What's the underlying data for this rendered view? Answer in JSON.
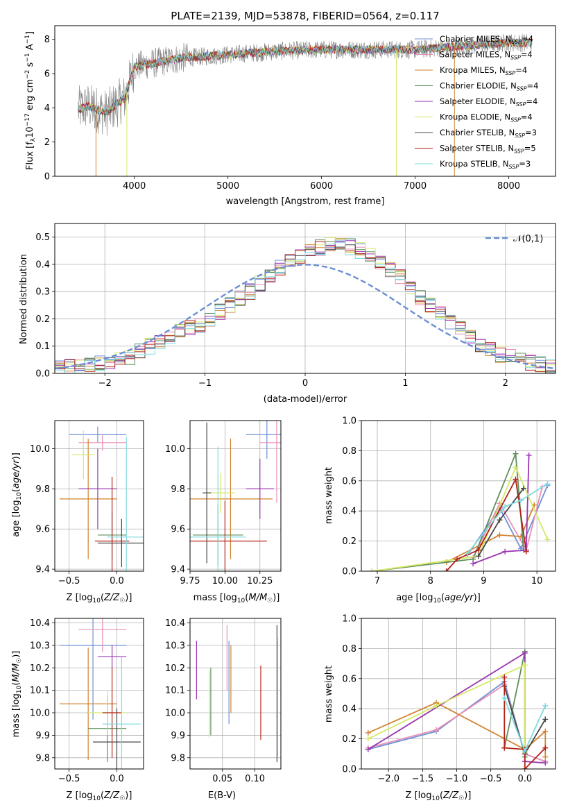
{
  "chart_data": [
    {
      "type": "line",
      "title": "PLATE=2139, MJD=53878, FIBERID=0564, z=0.117",
      "xlabel": "wavelength [Angstrom, rest frame]",
      "ylabel": "Flux [f_λ 10^-17 erg cm^-2 s^-1 A^-1]",
      "xlim": [
        3150,
        8500
      ],
      "ylim": [
        0,
        8.8
      ],
      "xticks": [
        "4000",
        "5000",
        "6000",
        "7000",
        "8000"
      ],
      "yticks": [
        "0",
        "2",
        "4",
        "6",
        "8"
      ],
      "legend_placement": "right",
      "series": [
        {
          "name": "Chabrier MILES, N_SSP=4",
          "color": "#6f8fd6"
        },
        {
          "name": "Salpeter MILES, N_SSP=4",
          "color": "#e98fb7"
        },
        {
          "name": "Kroupa MILES, N_SSP=4",
          "color": "#d2832e"
        },
        {
          "name": "Chabrier ELODIE, N_SSP=4",
          "color": "#5d8f5b"
        },
        {
          "name": "Salpeter ELODIE, N_SSP=4",
          "color": "#9a36b0"
        },
        {
          "name": "Kroupa ELODIE, N_SSP=4",
          "color": "#d6e866"
        },
        {
          "name": "Chabrier STELIB, N_SSP=3",
          "color": "#444444"
        },
        {
          "name": "Salpeter STELIB, N_SSP=5",
          "color": "#b32015"
        },
        {
          "name": "Kroupa STELIB, N_SSP=3",
          "color": "#7fd9df"
        }
      ],
      "continuum": {
        "x": [
          3400,
          3500,
          3700,
          3900,
          4000,
          4500,
          5000,
          5500,
          6000,
          6500,
          7000,
          7500,
          8000,
          8250
        ],
        "y": [
          3.9,
          4.1,
          3.7,
          4.6,
          6.4,
          6.9,
          7.1,
          7.3,
          7.4,
          7.4,
          7.4,
          7.6,
          7.8,
          7.8
        ]
      }
    },
    {
      "type": "histogram",
      "xlabel": "(data-model)/error",
      "ylabel": "Normed distribution",
      "xlim": [
        -2.5,
        2.5
      ],
      "ylim": [
        0,
        0.55
      ],
      "xticks": [
        "-2",
        "-1",
        "0",
        "1",
        "2"
      ],
      "yticks": [
        "0.0",
        "0.1",
        "0.2",
        "0.3",
        "0.4",
        "0.5"
      ],
      "legend": "𝒩(0,1)",
      "legend_placement": "top-right",
      "bin_width": 0.1,
      "base_values": [
        0.02,
        0.025,
        0.03,
        0.035,
        0.04,
        0.045,
        0.055,
        0.06,
        0.08,
        0.1,
        0.12,
        0.135,
        0.15,
        0.17,
        0.18,
        0.2,
        0.225,
        0.25,
        0.275,
        0.3,
        0.33,
        0.36,
        0.39,
        0.41,
        0.43,
        0.45,
        0.46,
        0.47,
        0.47,
        0.465,
        0.45,
        0.43,
        0.41,
        0.38,
        0.35,
        0.32,
        0.28,
        0.25,
        0.22,
        0.19,
        0.16,
        0.13,
        0.1,
        0.085,
        0.07,
        0.06,
        0.05,
        0.04,
        0.035,
        0.03
      ]
    },
    {
      "type": "scatter",
      "xlabel": "Z [log10(Z/Z☉)]",
      "ylabel": "age  [log10(age/yr)]",
      "xlim": [
        -0.65,
        0.28
      ],
      "ylim": [
        9.39,
        10.14
      ],
      "xticks": [
        "-0.5",
        "0.0"
      ],
      "yticks": [
        "9.4",
        "9.6",
        "9.8",
        "10.0"
      ],
      "points": [
        {
          "x": -0.2,
          "y": 10.07,
          "dx": 0.3,
          "dy": 0.04,
          "c": "#6f8fd6"
        },
        {
          "x": -0.15,
          "y": 10.03,
          "dx": 0.25,
          "dy": 0.04,
          "c": "#e98fb7"
        },
        {
          "x": -0.3,
          "y": 9.75,
          "dx": 0.3,
          "dy": 0.3,
          "c": "#d2832e"
        },
        {
          "x": -0.05,
          "y": 9.57,
          "dx": 0.15,
          "dy": 0.12,
          "c": "#5d8f5b"
        },
        {
          "x": -0.2,
          "y": 9.8,
          "dx": 0.2,
          "dy": 0.2,
          "c": "#9a36b0"
        },
        {
          "x": -0.35,
          "y": 9.97,
          "dx": 0.12,
          "dy": 0.12,
          "c": "#d6e866"
        },
        {
          "x": 0.05,
          "y": 9.53,
          "dx": 0.25,
          "dy": 0.12,
          "c": "#444444"
        },
        {
          "x": -0.05,
          "y": 9.54,
          "dx": 0.18,
          "dy": 0.32,
          "c": "#b32015"
        },
        {
          "x": 0.1,
          "y": 9.56,
          "dx": 0.2,
          "dy": 0.5,
          "c": "#7fd9df"
        }
      ]
    },
    {
      "type": "scatter",
      "xlabel": "mass [log10(M/M☉)]",
      "ylabel": "",
      "xlim": [
        9.75,
        10.4
      ],
      "ylim": [
        9.39,
        10.14
      ],
      "xticks": [
        "9.75",
        "10.00",
        "10.25"
      ],
      "yticks": [
        "9.4",
        "9.6",
        "9.8",
        "10.0"
      ],
      "points": [
        {
          "x": 10.3,
          "y": 10.07,
          "dx": 0.15,
          "dy": 0.12,
          "c": "#6f8fd6"
        },
        {
          "x": 10.37,
          "y": 10.03,
          "dx": 0.12,
          "dy": 0.3,
          "c": "#e98fb7"
        },
        {
          "x": 10.04,
          "y": 9.75,
          "dx": 0.3,
          "dy": 0.3,
          "c": "#d2832e"
        },
        {
          "x": 9.95,
          "y": 9.57,
          "dx": 0.18,
          "dy": 0.15,
          "c": "#5d8f5b"
        },
        {
          "x": 10.25,
          "y": 9.8,
          "dx": 0.1,
          "dy": 0.15,
          "c": "#9a36b0"
        },
        {
          "x": 9.97,
          "y": 9.78,
          "dx": 0.1,
          "dy": 0.1,
          "c": "#d6e866"
        },
        {
          "x": 9.87,
          "y": 9.78,
          "dx": 0.03,
          "dy": 0.35,
          "c": "#444444"
        },
        {
          "x": 10.0,
          "y": 9.54,
          "dx": 0.3,
          "dy": 0.2,
          "c": "#b32015"
        },
        {
          "x": 9.95,
          "y": 9.56,
          "dx": 0.2,
          "dy": 0.45,
          "c": "#7fd9df"
        }
      ]
    },
    {
      "type": "line",
      "xlabel": "age  [log10(age/yr)]",
      "ylabel": "mass weight",
      "xlim": [
        6.7,
        10.35
      ],
      "ylim": [
        0,
        1.0
      ],
      "xticks": [
        "7",
        "8",
        "9",
        "10"
      ],
      "yticks": [
        "0.0",
        "0.2",
        "0.4",
        "0.6",
        "0.8",
        "1.0"
      ],
      "series": [
        {
          "c": "#6f8fd6",
          "x": [
            8.7,
            9.3,
            9.7,
            10.2
          ],
          "y": [
            0.11,
            0.42,
            0.15,
            0.57
          ]
        },
        {
          "c": "#e98fb7",
          "x": [
            8.8,
            9.3,
            9.8,
            10.1
          ],
          "y": [
            0.09,
            0.45,
            0.14,
            0.56
          ]
        },
        {
          "c": "#d2832e",
          "x": [
            8.3,
            9.3,
            9.7,
            9.95
          ],
          "y": [
            0.06,
            0.24,
            0.23,
            0.44
          ]
        },
        {
          "c": "#5d8f5b",
          "x": [
            6.9,
            8.8,
            9.6,
            9.75
          ],
          "y": [
            0.0,
            0.08,
            0.78,
            0.14
          ]
        },
        {
          "c": "#9a36b0",
          "x": [
            8.8,
            9.4,
            9.8,
            9.85
          ],
          "y": [
            0.05,
            0.13,
            0.14,
            0.77
          ]
        },
        {
          "c": "#d6e866",
          "x": [
            6.9,
            8.9,
            9.6,
            10.2
          ],
          "y": [
            0.0,
            0.1,
            0.69,
            0.21
          ]
        },
        {
          "c": "#444444",
          "x": [
            8.9,
            9.3,
            9.75
          ],
          "y": [
            0.1,
            0.34,
            0.55
          ]
        },
        {
          "c": "#b32015",
          "x": [
            8.3,
            8.5,
            8.9,
            9.6,
            9.8
          ],
          "y": [
            0.0,
            0.08,
            0.14,
            0.61,
            0.13
          ]
        },
        {
          "c": "#7fd9df",
          "x": [
            8.7,
            9.4,
            9.7,
            10.2
          ],
          "y": [
            0.12,
            0.43,
            0.47,
            0.58
          ]
        }
      ]
    },
    {
      "type": "scatter",
      "xlabel": "Z [log10(Z/Z☉)]",
      "ylabel": "mass [log10(M/M☉)]",
      "xlim": [
        -0.65,
        0.28
      ],
      "ylim": [
        9.75,
        10.42
      ],
      "xticks": [
        "-0.5",
        "0.0"
      ],
      "yticks": [
        "9.8",
        "9.9",
        "10.0",
        "10.1",
        "10.2",
        "10.3",
        "10.4"
      ],
      "points": [
        {
          "x": -0.25,
          "y": 10.3,
          "dx": 0.35,
          "dy": 0.33,
          "c": "#6f8fd6"
        },
        {
          "x": -0.15,
          "y": 10.37,
          "dx": 0.25,
          "dy": 0.1,
          "c": "#e98fb7"
        },
        {
          "x": -0.3,
          "y": 10.04,
          "dx": 0.3,
          "dy": 0.25,
          "c": "#d2832e"
        },
        {
          "x": -0.1,
          "y": 9.93,
          "dx": 0.2,
          "dy": 0.15,
          "c": "#5d8f5b"
        },
        {
          "x": -0.05,
          "y": 10.25,
          "dx": 0.15,
          "dy": 0.05,
          "c": "#9a36b0"
        },
        {
          "x": -0.1,
          "y": 10.0,
          "dx": 0.2,
          "dy": 0.1,
          "c": "#d6e866"
        },
        {
          "x": 0.0,
          "y": 9.87,
          "dx": 0.25,
          "dy": 0.15,
          "c": "#444444"
        },
        {
          "x": -0.05,
          "y": 10.0,
          "dx": 0.1,
          "dy": 0.2,
          "c": "#b32015"
        },
        {
          "x": 0.05,
          "y": 9.95,
          "dx": 0.2,
          "dy": 0.3,
          "c": "#7fd9df"
        }
      ]
    },
    {
      "type": "scatter",
      "xlabel": "E(B-V)",
      "ylabel": "",
      "xlim": [
        0.0,
        0.14
      ],
      "ylim": [
        9.75,
        10.42
      ],
      "xticks": [
        "0.05",
        "0.10"
      ],
      "yticks": [
        "9.8",
        "9.9",
        "10.0",
        "10.1",
        "10.2",
        "10.3",
        "10.4"
      ],
      "bars": [
        {
          "x": 0.01,
          "y0": 10.06,
          "y1": 10.32,
          "c": "#9a36b0"
        },
        {
          "x": 0.03,
          "y0": 9.89,
          "y1": 10.19,
          "c": "#d6e866"
        },
        {
          "x": 0.032,
          "y0": 9.9,
          "y1": 10.2,
          "c": "#5d8f5b"
        },
        {
          "x": 0.057,
          "y0": 10.1,
          "y1": 10.39,
          "c": "#e98fb7"
        },
        {
          "x": 0.06,
          "y0": 9.95,
          "y1": 10.32,
          "c": "#6f8fd6"
        },
        {
          "x": 0.063,
          "y0": 10.0,
          "y1": 10.3,
          "c": "#d2832e"
        },
        {
          "x": 0.109,
          "y0": 9.88,
          "y1": 10.21,
          "c": "#b32015"
        },
        {
          "x": 0.134,
          "y0": 9.78,
          "y1": 10.39,
          "c": "#444444"
        },
        {
          "x": 0.135,
          "y0": 9.8,
          "y1": 10.33,
          "c": "#7fd9df"
        }
      ]
    },
    {
      "type": "line",
      "xlabel": "Z [log10(Z/Z☉)]",
      "ylabel": "mass weight",
      "xlim": [
        -2.4,
        0.45
      ],
      "ylim": [
        0,
        1.0
      ],
      "xticks": [
        "-2.0",
        "-1.5",
        "-1.0",
        "-0.5",
        "0.0"
      ],
      "yticks": [
        "0.0",
        "0.2",
        "0.4",
        "0.6",
        "0.8",
        "1.0"
      ],
      "series": [
        {
          "c": "#6f8fd6",
          "x": [
            -2.3,
            -1.3,
            -0.3,
            0.0,
            0.3
          ],
          "y": [
            0.13,
            0.25,
            0.58,
            0.1,
            0.05
          ]
        },
        {
          "c": "#e98fb7",
          "x": [
            -2.3,
            -1.3,
            -0.3,
            0.0,
            0.3
          ],
          "y": [
            0.14,
            0.26,
            0.56,
            0.1,
            0.05
          ]
        },
        {
          "c": "#d2832e",
          "x": [
            -2.3,
            -1.3,
            0.0,
            0.3,
            0.3
          ],
          "y": [
            0.24,
            0.44,
            0.13,
            0.25,
            0.08
          ]
        },
        {
          "c": "#5d8f5b",
          "x": [
            -0.3,
            0.0,
            0.0
          ],
          "y": [
            0.14,
            0.78,
            0.08
          ]
        },
        {
          "c": "#9a36b0",
          "x": [
            -2.3,
            0.0,
            0.0,
            0.3
          ],
          "y": [
            0.13,
            0.77,
            0.05,
            0.04
          ]
        },
        {
          "c": "#d6e866",
          "x": [
            -2.3,
            -1.3,
            0.0,
            0.0
          ],
          "y": [
            0.2,
            0.42,
            0.69,
            0.11
          ]
        },
        {
          "c": "#444444",
          "x": [
            -0.3,
            0.0,
            0.3
          ],
          "y": [
            0.55,
            0.1,
            0.33
          ]
        },
        {
          "c": "#b32015",
          "x": [
            -0.3,
            -0.3,
            0.0,
            0.0,
            0.3
          ],
          "y": [
            0.61,
            0.14,
            0.13,
            0.0,
            0.14
          ]
        },
        {
          "c": "#7fd9df",
          "x": [
            -0.3,
            0.0,
            0.3
          ],
          "y": [
            0.47,
            0.12,
            0.42
          ]
        }
      ]
    }
  ]
}
